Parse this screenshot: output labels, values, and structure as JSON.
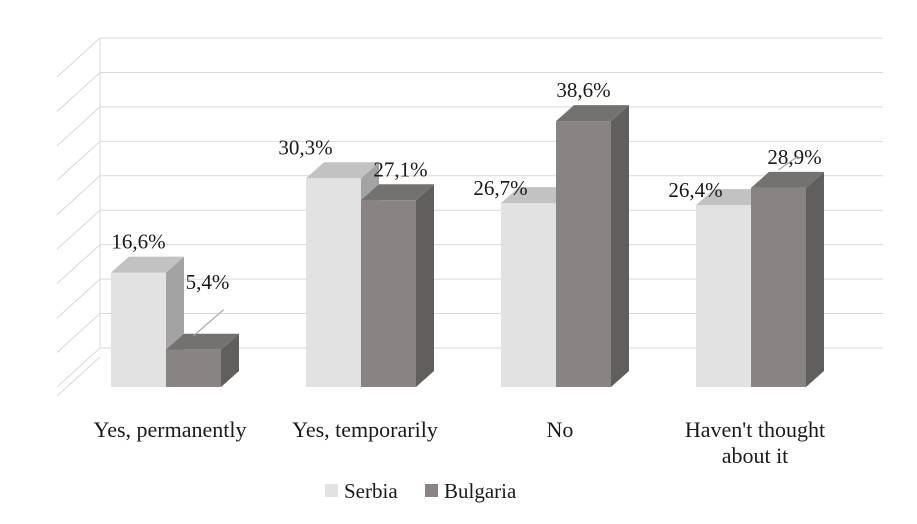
{
  "chart_data": {
    "type": "bar",
    "categories": [
      "Yes, permanently",
      "Yes, temporarily",
      "No",
      "Haven't thought about it"
    ],
    "category_lines": [
      [
        "Yes, permanently"
      ],
      [
        "Yes, temporarily"
      ],
      [
        "No"
      ],
      [
        "Haven't thought",
        "about it"
      ]
    ],
    "series": [
      {
        "name": "Serbia",
        "values": [
          16.6,
          30.3,
          26.7,
          26.4
        ],
        "labels": [
          "16,6%",
          "30,3%",
          "26,7%",
          "26,4%"
        ],
        "color": "#e3e2e3"
      },
      {
        "name": "Bulgaria",
        "values": [
          5.4,
          27.1,
          38.6,
          28.9
        ],
        "labels": [
          "5,4%",
          "27,1%",
          "38,6%",
          "28,9%"
        ],
        "color": "#878483"
      }
    ],
    "ylim": [
      0,
      45
    ],
    "grid": true,
    "legend_position": "bottom",
    "style": "3d-clustered-column"
  }
}
